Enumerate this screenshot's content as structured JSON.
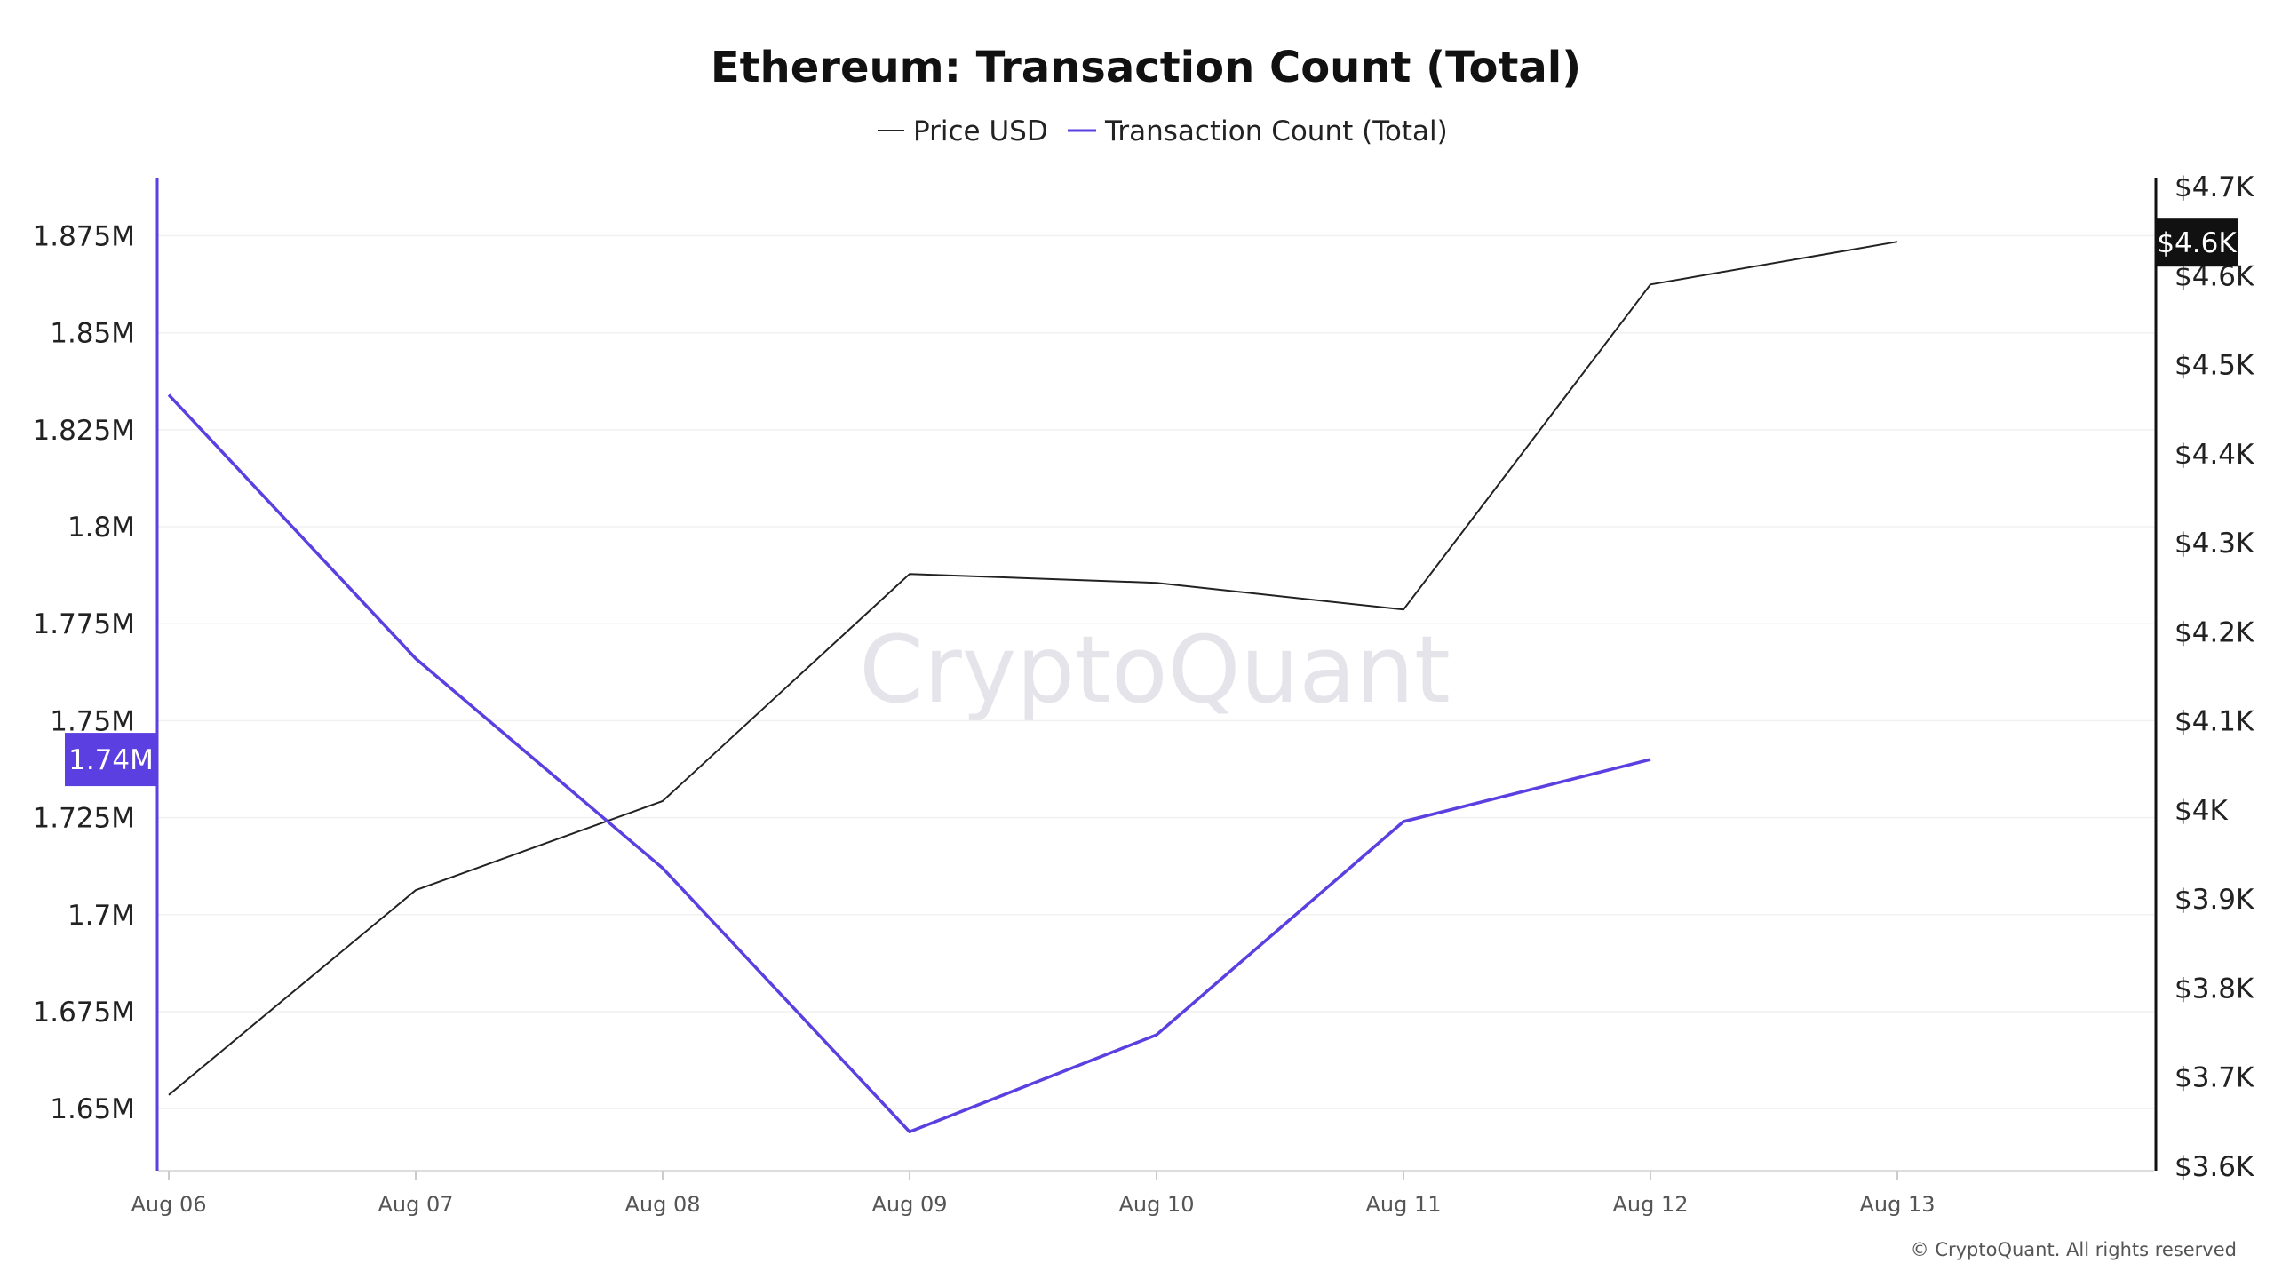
{
  "chart_data": {
    "type": "line",
    "title": "Ethereum: Transaction Count (Total)",
    "categories": [
      "Aug 06",
      "Aug 07",
      "Aug 08",
      "Aug 09",
      "Aug 10",
      "Aug 11",
      "Aug 12",
      "Aug 13"
    ],
    "series": [
      {
        "name": "Price USD",
        "axis": "right",
        "color": "#222222",
        "values": [
          3680,
          3910,
          4010,
          4265,
          4255,
          4225,
          4590,
          4638
        ]
      },
      {
        "name": "Transaction Count (Total)",
        "axis": "left",
        "color": "#5b3fe0",
        "values": [
          1834000,
          1766000,
          1712000,
          1644000,
          1669000,
          1724000,
          1740000,
          null
        ]
      }
    ],
    "y_left": {
      "ylim": [
        1634000,
        1890000
      ],
      "ticks": [
        1650000,
        1675000,
        1700000,
        1725000,
        1750000,
        1775000,
        1800000,
        1825000,
        1850000,
        1875000
      ],
      "tick_labels": [
        "1.65M",
        "1.675M",
        "1.7M",
        "1.725M",
        "1.75M",
        "1.775M",
        "1.8M",
        "1.825M",
        "1.85M",
        "1.875M"
      ],
      "current_label": "1.74M",
      "current_value": 1740000
    },
    "y_right": {
      "ylim": [
        3595,
        4710
      ],
      "ticks": [
        3600,
        3700,
        3800,
        3900,
        4000,
        4100,
        4200,
        4300,
        4400,
        4500,
        4600,
        4700
      ],
      "tick_labels": [
        "$3.6K",
        "$3.7K",
        "$3.8K",
        "$3.9K",
        "$4K",
        "$4.1K",
        "$4.2K",
        "$4.3K",
        "$4.4K",
        "$4.5K",
        "$4.6K",
        "$4.7K"
      ],
      "current_label": "$4.6K",
      "current_value": 4638
    },
    "legend_placement": "top-center",
    "grid": true
  },
  "watermark": "CryptoQuant",
  "copyright": "© CryptoQuant. All rights reserved",
  "colors": {
    "price": "#222222",
    "transactions": "#5b3fe0",
    "grid": "#f0f0f0",
    "axis": "#dddddd"
  }
}
